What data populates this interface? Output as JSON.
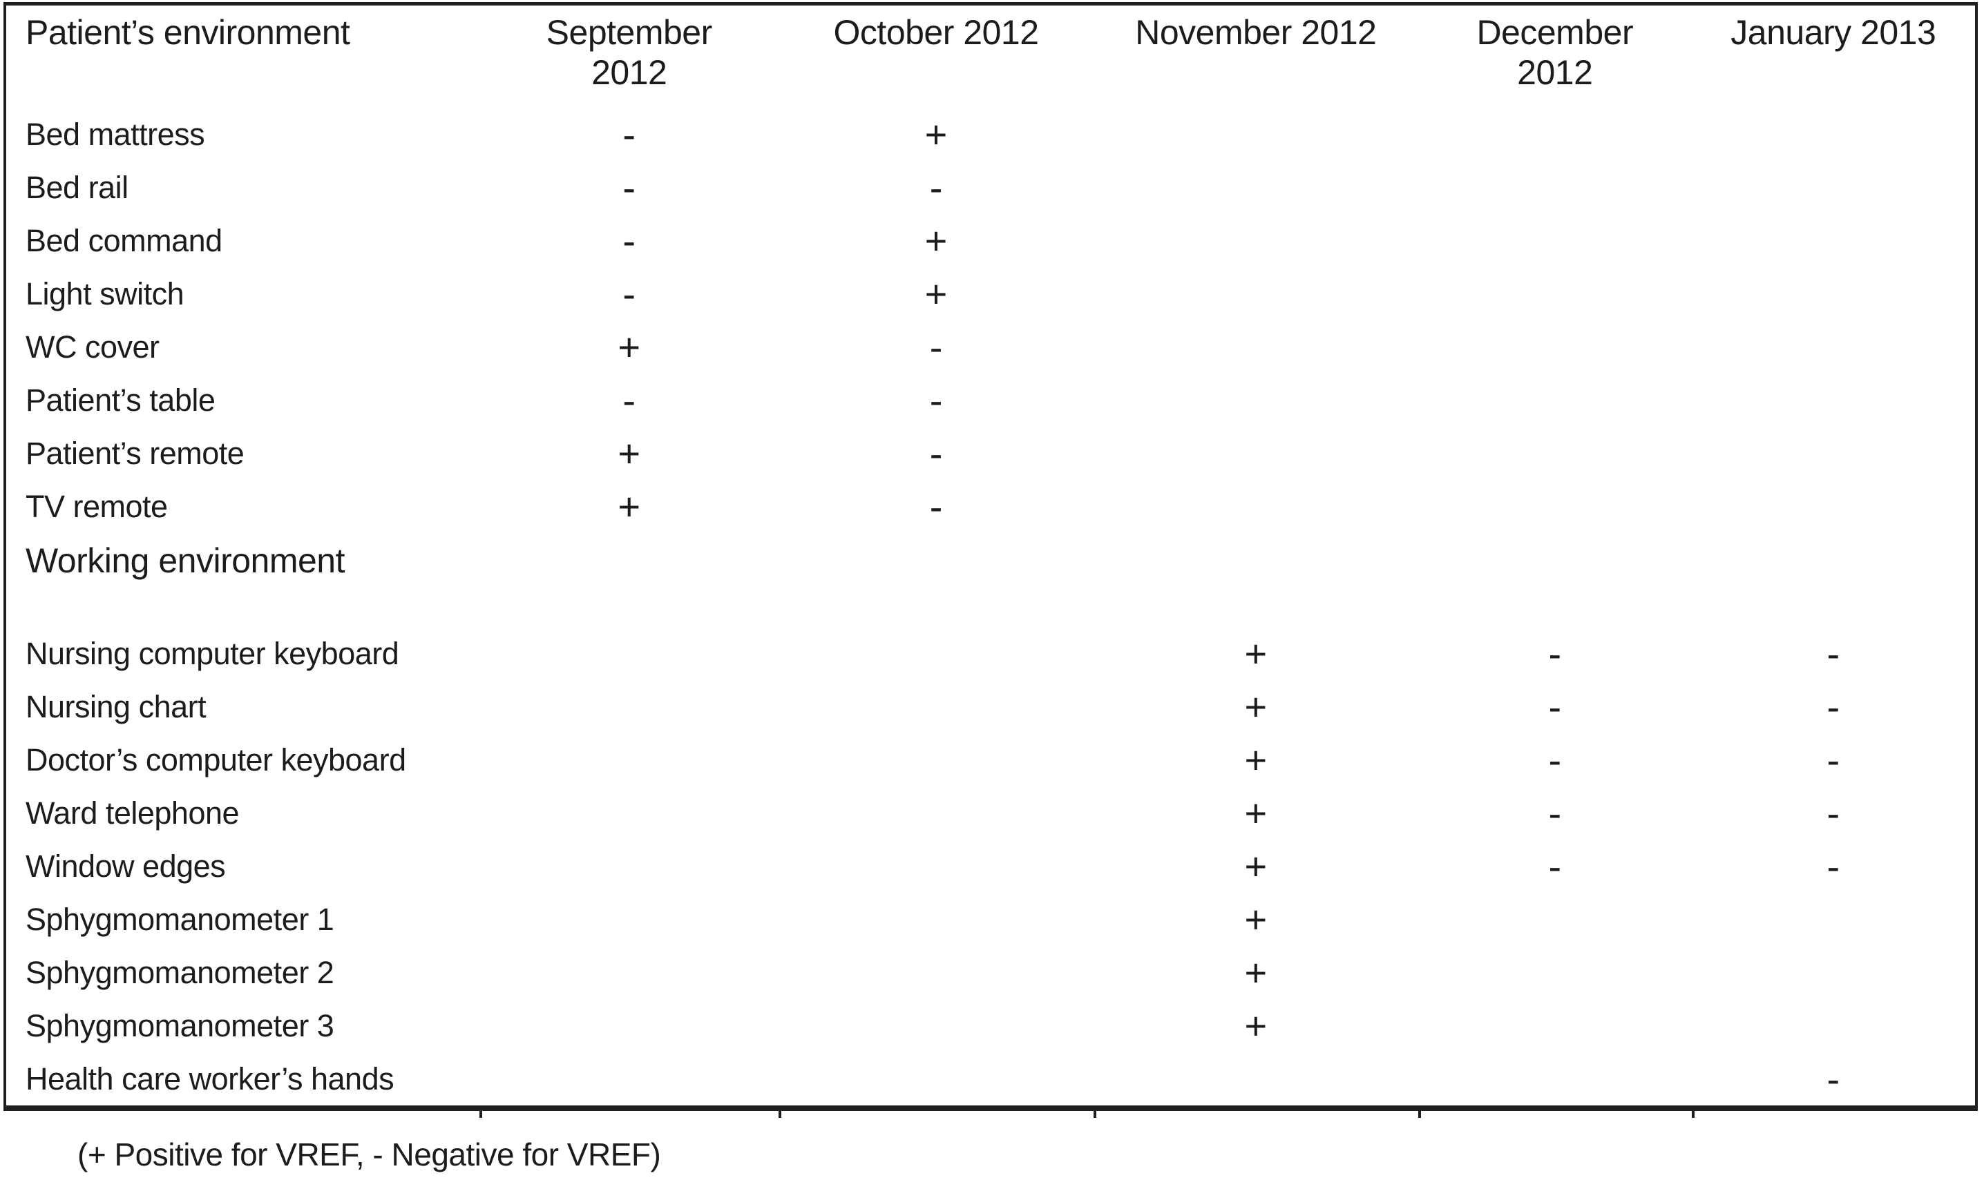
{
  "table": {
    "header": {
      "environment": "Patient’s environment",
      "september": "September\n2012",
      "october": "October 2012",
      "november": "November 2012",
      "december": "December\n2012",
      "january": "January 2013"
    },
    "section_header": "Working environment",
    "patient_rows": [
      {
        "label": "Bed mattress",
        "sep": "-",
        "oct": "+",
        "nov": "",
        "dec": "",
        "jan": ""
      },
      {
        "label": "Bed rail",
        "sep": "-",
        "oct": "-",
        "nov": "",
        "dec": "",
        "jan": ""
      },
      {
        "label": "Bed command",
        "sep": "-",
        "oct": "+",
        "nov": "",
        "dec": "",
        "jan": ""
      },
      {
        "label": "Light switch",
        "sep": "-",
        "oct": "+",
        "nov": "",
        "dec": "",
        "jan": ""
      },
      {
        "label": "WC cover",
        "sep": "+",
        "oct": "-",
        "nov": "",
        "dec": "",
        "jan": ""
      },
      {
        "label": "Patient’s table",
        "sep": "-",
        "oct": "-",
        "nov": "",
        "dec": "",
        "jan": ""
      },
      {
        "label": "Patient’s remote",
        "sep": "+",
        "oct": "-",
        "nov": "",
        "dec": "",
        "jan": ""
      },
      {
        "label": "TV remote",
        "sep": "+",
        "oct": "-",
        "nov": "",
        "dec": "",
        "jan": ""
      }
    ],
    "working_rows": [
      {
        "label": "Nursing computer keyboard",
        "sep": "",
        "oct": "",
        "nov": "+",
        "dec": "-",
        "jan": "-"
      },
      {
        "label": "Nursing chart",
        "sep": "",
        "oct": "",
        "nov": "+",
        "dec": "-",
        "jan": "-"
      },
      {
        "label": "Doctor’s computer keyboard",
        "sep": "",
        "oct": "",
        "nov": "+",
        "dec": "-",
        "jan": "-"
      },
      {
        "label": "Ward telephone",
        "sep": "",
        "oct": "",
        "nov": "+",
        "dec": "-",
        "jan": "-"
      },
      {
        "label": "Window edges",
        "sep": "",
        "oct": "",
        "nov": "+",
        "dec": "-",
        "jan": "-"
      },
      {
        "label": "Sphygmomanometer 1",
        "sep": "",
        "oct": "",
        "nov": "+",
        "dec": "",
        "jan": ""
      },
      {
        "label": "Sphygmomanometer 2",
        "sep": "",
        "oct": "",
        "nov": "+",
        "dec": "",
        "jan": ""
      },
      {
        "label": "Sphygmomanometer 3",
        "sep": "",
        "oct": "",
        "nov": "+",
        "dec": "",
        "jan": ""
      },
      {
        "label": "Health care worker’s hands",
        "sep": "",
        "oct": "",
        "nov": "",
        "dec": "",
        "jan": "-"
      }
    ]
  },
  "legend": "(+ Positive for VREF, - Negative for VREF)",
  "colors": {
    "ink": "#1c1c1c",
    "border": "#1f1f1f",
    "background": "#ffffff"
  }
}
